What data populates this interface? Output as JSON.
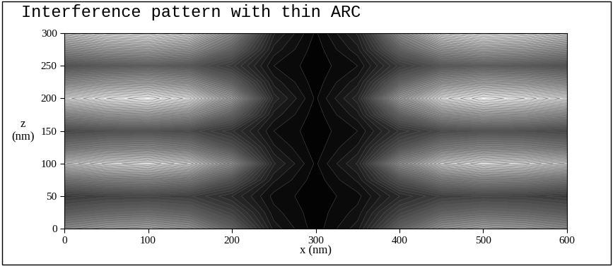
{
  "chart_data": {
    "type": "heatmap",
    "title": "Interference pattern with thin ARC",
    "x_label": "x (nm)",
    "y_label": "z\n(nm)",
    "x": [
      0,
      50,
      100,
      150,
      200,
      250,
      300,
      350,
      400,
      450,
      500,
      550,
      600
    ],
    "y": [
      0,
      25,
      50,
      75,
      100,
      125,
      150,
      175,
      200,
      225,
      250,
      275,
      300
    ],
    "cells": [
      [
        0.51,
        0.57,
        0.6,
        0.54,
        0.36,
        0.09,
        0.01,
        0.09,
        0.36,
        0.54,
        0.6,
        0.57,
        0.51
      ],
      [
        0.34,
        0.38,
        0.4,
        0.36,
        0.24,
        0.06,
        0.01,
        0.06,
        0.24,
        0.36,
        0.4,
        0.38,
        0.34
      ],
      [
        0.21,
        0.24,
        0.25,
        0.23,
        0.15,
        0.04,
        0.01,
        0.04,
        0.15,
        0.23,
        0.25,
        0.24,
        0.21
      ],
      [
        0.43,
        0.48,
        0.5,
        0.45,
        0.3,
        0.08,
        0.01,
        0.08,
        0.3,
        0.45,
        0.5,
        0.48,
        0.43
      ],
      [
        0.72,
        0.81,
        0.85,
        0.77,
        0.51,
        0.13,
        0.02,
        0.13,
        0.51,
        0.77,
        0.85,
        0.81,
        0.72
      ],
      [
        0.43,
        0.48,
        0.5,
        0.45,
        0.3,
        0.08,
        0.01,
        0.08,
        0.3,
        0.45,
        0.5,
        0.48,
        0.43
      ],
      [
        0.26,
        0.29,
        0.3,
        0.27,
        0.18,
        0.05,
        0.01,
        0.05,
        0.18,
        0.27,
        0.3,
        0.29,
        0.26
      ],
      [
        0.51,
        0.57,
        0.6,
        0.54,
        0.36,
        0.09,
        0.01,
        0.09,
        0.36,
        0.54,
        0.6,
        0.57,
        0.51
      ],
      [
        0.81,
        0.9,
        0.95,
        0.86,
        0.57,
        0.14,
        0.02,
        0.14,
        0.57,
        0.86,
        0.95,
        0.9,
        0.81
      ],
      [
        0.51,
        0.57,
        0.6,
        0.54,
        0.36,
        0.09,
        0.01,
        0.09,
        0.36,
        0.54,
        0.6,
        0.57,
        0.51
      ],
      [
        0.3,
        0.33,
        0.35,
        0.32,
        0.21,
        0.05,
        0.01,
        0.05,
        0.21,
        0.32,
        0.35,
        0.33,
        0.3
      ],
      [
        0.51,
        0.57,
        0.6,
        0.54,
        0.36,
        0.09,
        0.01,
        0.09,
        0.36,
        0.54,
        0.6,
        0.57,
        0.51
      ],
      [
        0.72,
        0.81,
        0.85,
        0.77,
        0.51,
        0.13,
        0.02,
        0.13,
        0.51,
        0.77,
        0.85,
        0.81,
        0.72
      ]
    ],
    "xlim": [
      0,
      600
    ],
    "xticks": [
      0,
      100,
      200,
      300,
      400,
      500,
      600
    ],
    "ylim": [
      0,
      300
    ],
    "yticks": [
      0,
      50,
      100,
      150,
      200,
      250,
      300
    ],
    "grid": false
  }
}
